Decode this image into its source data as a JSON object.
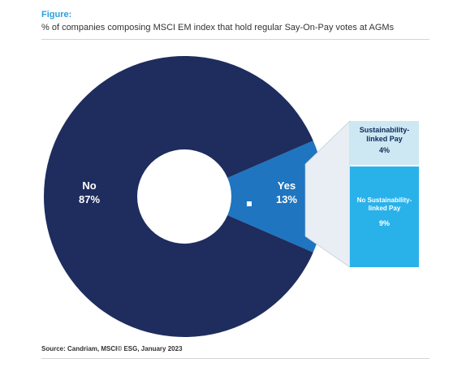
{
  "figure": {
    "label": "Figure:",
    "title": "% of companies composing MSCI EM index that hold regular Say-On-Pay votes at AGMs",
    "source": "Source: Candriam, MSCI© ESG, January 2023"
  },
  "chart_data": {
    "type": "pie",
    "variant": "donut",
    "slices": [
      {
        "label": "No",
        "value": 87,
        "display": "87%",
        "color": "#1e2d5e"
      },
      {
        "label": "Yes",
        "value": 13,
        "display": "13%",
        "color": "#1f75c0"
      }
    ],
    "breakdown": {
      "of": "Yes",
      "items": [
        {
          "label": "Sustainability-linked Pay",
          "value": 4,
          "display": "4%",
          "color": "#cde8f2"
        },
        {
          "label": "No Sustainability-linked Pay",
          "value": 9,
          "display": "9%",
          "color": "#29b2ea"
        }
      ]
    }
  }
}
